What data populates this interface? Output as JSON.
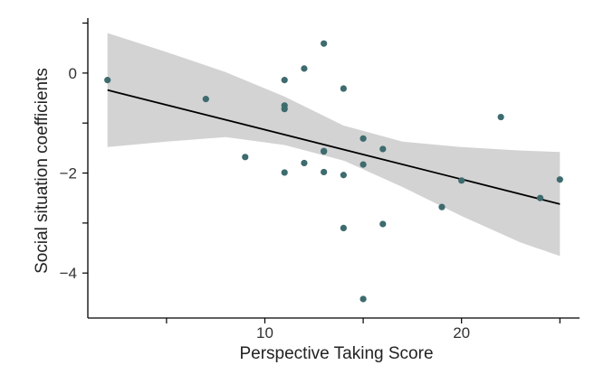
{
  "chart_data": {
    "type": "scatter",
    "title": "",
    "xlabel": "Perspective Taking Score",
    "ylabel": "Social situation coefficients",
    "xlim": [
      1.0,
      26.0
    ],
    "ylim": [
      -4.9,
      1.1
    ],
    "xticks": [
      {
        "value": 5,
        "label": ""
      },
      {
        "value": 10,
        "label": "10"
      },
      {
        "value": 15,
        "label": ""
      },
      {
        "value": 20,
        "label": "20"
      },
      {
        "value": 25,
        "label": ""
      }
    ],
    "yticks": [
      {
        "value": 1,
        "label": ""
      },
      {
        "value": 0,
        "label": "0"
      },
      {
        "value": -1,
        "label": ""
      },
      {
        "value": -2,
        "label": "−2"
      },
      {
        "value": -3,
        "label": ""
      },
      {
        "value": -4,
        "label": "−4"
      }
    ],
    "points": [
      {
        "x": 2,
        "y": -0.14
      },
      {
        "x": 7,
        "y": -0.52
      },
      {
        "x": 9,
        "y": -1.68
      },
      {
        "x": 11,
        "y": -0.14
      },
      {
        "x": 11,
        "y": -0.65
      },
      {
        "x": 11,
        "y": -0.72
      },
      {
        "x": 11,
        "y": -1.99
      },
      {
        "x": 12,
        "y": 0.09
      },
      {
        "x": 12,
        "y": -1.8
      },
      {
        "x": 13,
        "y": 0.59
      },
      {
        "x": 13,
        "y": -1.56
      },
      {
        "x": 13,
        "y": -1.57
      },
      {
        "x": 13,
        "y": -1.98
      },
      {
        "x": 14,
        "y": -0.31
      },
      {
        "x": 14,
        "y": -2.04
      },
      {
        "x": 14,
        "y": -3.1
      },
      {
        "x": 15,
        "y": -1.31
      },
      {
        "x": 15,
        "y": -1.83
      },
      {
        "x": 15,
        "y": -4.52
      },
      {
        "x": 16,
        "y": -1.52
      },
      {
        "x": 16,
        "y": -3.02
      },
      {
        "x": 19,
        "y": -2.68
      },
      {
        "x": 20,
        "y": -2.15
      },
      {
        "x": 22,
        "y": -0.88
      },
      {
        "x": 24,
        "y": -2.5
      },
      {
        "x": 25,
        "y": -2.13
      }
    ],
    "regression_line": {
      "x": [
        2,
        25
      ],
      "y": [
        -0.34,
        -2.62
      ]
    },
    "confidence_band": {
      "x": [
        2,
        5,
        8,
        11,
        14,
        17,
        20,
        23,
        25
      ],
      "upper": [
        0.8,
        0.42,
        0.02,
        -0.47,
        -1.05,
        -1.37,
        -1.48,
        -1.55,
        -1.58
      ],
      "lower": [
        -1.48,
        -1.37,
        -1.28,
        -1.44,
        -1.75,
        -2.28,
        -2.86,
        -3.39,
        -3.66
      ]
    },
    "grid": false,
    "legend": "none",
    "colors": {
      "point": "#3d6b6e",
      "line": "#000000",
      "band": "#d3d3d3",
      "axis": "#000000"
    }
  }
}
